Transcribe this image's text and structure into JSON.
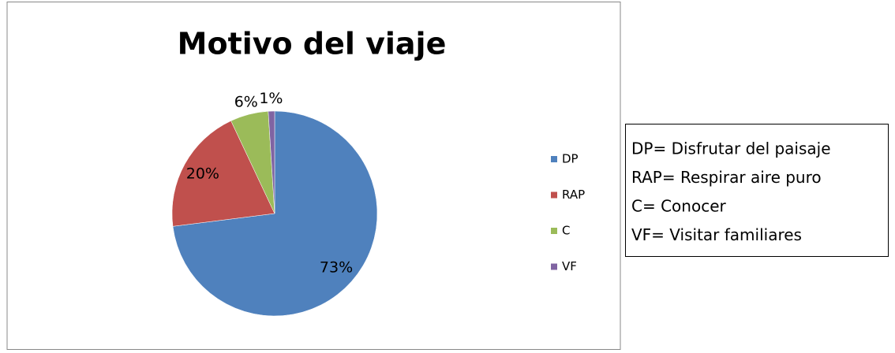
{
  "chart_data": {
    "type": "pie",
    "title": "Motivo del viaje",
    "categories": [
      "DP",
      "RAP",
      "C",
      "VF"
    ],
    "values": [
      73,
      20,
      6,
      1
    ],
    "value_labels": [
      "73%",
      "20%",
      "6%",
      "1%"
    ],
    "colors": [
      "#4f81bd",
      "#c0504d",
      "#9bbb59",
      "#8064a2"
    ],
    "legend": "right",
    "annotations": [
      "DP= Disfrutar del paisaje",
      "RAP= Respirar aire puro",
      "C= Conocer",
      "VF= Visitar familiares"
    ]
  }
}
